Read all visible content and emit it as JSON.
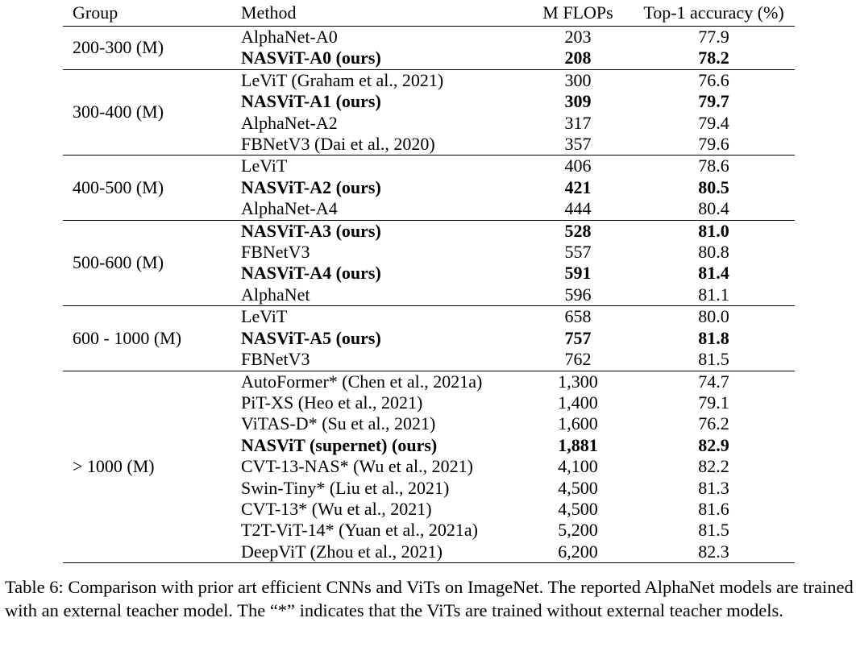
{
  "header": {
    "group": "Group",
    "method": "Method",
    "flops": "M FLOPs",
    "accuracy": "Top-1 accuracy (%)"
  },
  "groups": [
    {
      "label": "200-300 (M)",
      "rows": [
        {
          "method": "AlphaNet-A0",
          "flops": "203",
          "acc": "77.9",
          "bold": false
        },
        {
          "method": "NASViT-A0 (ours)",
          "flops": "208",
          "acc": "78.2",
          "bold": true
        }
      ]
    },
    {
      "label": "300-400 (M)",
      "rows": [
        {
          "method": "LeViT (Graham et al., 2021)",
          "flops": "300",
          "acc": "76.6",
          "bold": false
        },
        {
          "method": "NASViT-A1 (ours)",
          "flops": "309",
          "acc": "79.7",
          "bold": true
        },
        {
          "method": "AlphaNet-A2",
          "flops": "317",
          "acc": "79.4",
          "bold": false
        },
        {
          "method": "FBNetV3  (Dai et al., 2020)",
          "flops": "357",
          "acc": "79.6",
          "bold": false
        }
      ]
    },
    {
      "label": "400-500 (M)",
      "rows": [
        {
          "method": "LeViT",
          "flops": "406",
          "acc": "78.6",
          "bold": false
        },
        {
          "method": "NASViT-A2 (ours)",
          "flops": "421",
          "acc": "80.5",
          "bold": true
        },
        {
          "method": "AlphaNet-A4",
          "flops": "444",
          "acc": "80.4",
          "bold": false
        }
      ]
    },
    {
      "label": "500-600 (M)",
      "rows": [
        {
          "method": "NASViT-A3 (ours)",
          "flops": "528",
          "acc": "81.0",
          "bold": true
        },
        {
          "method": "FBNetV3",
          "flops": "557",
          "acc": "80.8",
          "bold": false
        },
        {
          "method": "NASViT-A4 (ours)",
          "flops": "591",
          "acc": "81.4",
          "bold": true
        },
        {
          "method": "AlphaNet",
          "flops": "596",
          "acc": "81.1",
          "bold": false
        }
      ]
    },
    {
      "label": "600 - 1000 (M)",
      "rows": [
        {
          "method": "LeViT",
          "flops": "658",
          "acc": "80.0",
          "bold": false
        },
        {
          "method": "NASViT-A5 (ours)",
          "flops": "757",
          "acc": "81.8",
          "bold": true
        },
        {
          "method": "FBNetV3",
          "flops": "762",
          "acc": "81.5",
          "bold": false
        }
      ]
    },
    {
      "label": "> 1000 (M)",
      "rows": [
        {
          "method": "AutoFormer* (Chen et al., 2021a)",
          "flops": "1,300",
          "acc": "74.7",
          "bold": false
        },
        {
          "method": "PiT-XS (Heo et al., 2021)",
          "flops": "1,400",
          "acc": "79.1",
          "bold": false
        },
        {
          "method": "ViTAS-D* (Su et al., 2021)",
          "flops": "1,600",
          "acc": "76.2",
          "bold": false
        },
        {
          "method": "NASViT (supernet) (ours)",
          "flops": "1,881",
          "acc": "82.9",
          "bold": true
        },
        {
          "method": "CVT-13-NAS* (Wu et al., 2021)",
          "flops": "4,100",
          "acc": "82.2",
          "bold": false
        },
        {
          "method": "Swin-Tiny* (Liu et al., 2021)",
          "flops": "4,500",
          "acc": "81.3",
          "bold": false
        },
        {
          "method": "CVT-13* (Wu et al., 2021)",
          "flops": "4,500",
          "acc": "81.6",
          "bold": false
        },
        {
          "method": "T2T-ViT-14* (Yuan et al., 2021a)",
          "flops": "5,200",
          "acc": "81.5",
          "bold": false
        },
        {
          "method": "DeepViT  (Zhou et al., 2021)",
          "flops": "6,200",
          "acc": "82.3",
          "bold": false
        }
      ]
    }
  ],
  "caption": "Table 6:  Comparison with prior art efficient CNNs and ViTs on ImageNet. The reported AlphaNet models are trained with an external teacher model. The “*” indicates that the ViTs are trained without external teacher models."
}
